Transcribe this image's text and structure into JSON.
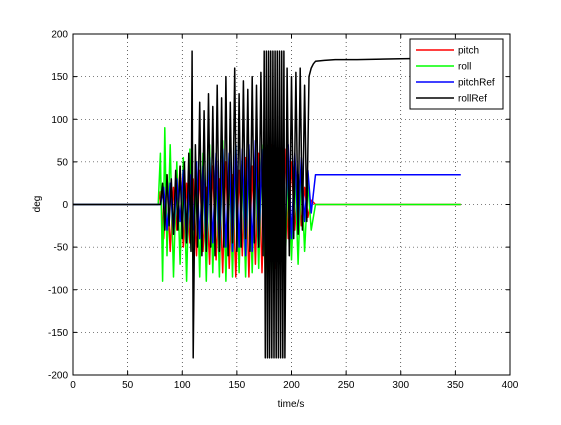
{
  "chart_data": {
    "type": "line",
    "title": "",
    "xlabel": "time/s",
    "ylabel": "deg",
    "xlim": [
      0,
      400
    ],
    "ylim": [
      -200,
      200
    ],
    "xticks": [
      0,
      50,
      100,
      150,
      200,
      250,
      300,
      350,
      400
    ],
    "yticks": [
      -200,
      -150,
      -100,
      -50,
      0,
      50,
      100,
      150,
      200
    ],
    "grid": true,
    "legend_position": "top-right",
    "series": [
      {
        "name": "pitch",
        "color": "#ff0000",
        "x": [
          0,
          78,
          80,
          83,
          86,
          89,
          92,
          95,
          98,
          101,
          104,
          107,
          110,
          113,
          116,
          119,
          122,
          125,
          128,
          131,
          134,
          137,
          140,
          143,
          146,
          149,
          152,
          155,
          158,
          161,
          164,
          167,
          170,
          173,
          176,
          179,
          182,
          185,
          188,
          191,
          194,
          197,
          200,
          203,
          206,
          209,
          212,
          215,
          218,
          222,
          355
        ],
        "y": [
          0,
          0,
          15,
          -40,
          35,
          -55,
          20,
          -30,
          45,
          -50,
          25,
          -45,
          30,
          -60,
          40,
          -55,
          20,
          -70,
          45,
          -65,
          30,
          -80,
          50,
          -75,
          35,
          -85,
          40,
          -60,
          55,
          -85,
          45,
          -70,
          60,
          -80,
          50,
          -65,
          70,
          -75,
          55,
          -60,
          65,
          -40,
          50,
          -30,
          35,
          -25,
          20,
          -15,
          5,
          0,
          0
        ]
      },
      {
        "name": "roll",
        "color": "#00ff00",
        "x": [
          0,
          78,
          80,
          82,
          84,
          86,
          89,
          92,
          95,
          98,
          101,
          104,
          107,
          110,
          113,
          116,
          119,
          122,
          125,
          128,
          131,
          134,
          137,
          140,
          143,
          146,
          149,
          152,
          155,
          158,
          161,
          164,
          167,
          170,
          173,
          176,
          179,
          182,
          185,
          188,
          191,
          194,
          197,
          200,
          203,
          206,
          209,
          212,
          215,
          218,
          222,
          355
        ],
        "y": [
          0,
          0,
          60,
          -90,
          90,
          -60,
          70,
          -85,
          50,
          -70,
          55,
          -90,
          65,
          -80,
          50,
          -85,
          60,
          -90,
          70,
          -80,
          55,
          -85,
          75,
          -90,
          60,
          -85,
          70,
          -80,
          50,
          -85,
          65,
          -80,
          55,
          -75,
          70,
          -85,
          60,
          -80,
          55,
          -75,
          65,
          -85,
          50,
          -65,
          45,
          -70,
          40,
          -55,
          25,
          -30,
          0,
          0
        ]
      },
      {
        "name": "pitchRef",
        "color": "#0000ff",
        "x": [
          0,
          80,
          83,
          86,
          89,
          92,
          95,
          98,
          101,
          104,
          107,
          110,
          113,
          116,
          119,
          122,
          125,
          128,
          131,
          134,
          137,
          140,
          143,
          146,
          149,
          152,
          155,
          158,
          161,
          164,
          167,
          170,
          173,
          176,
          179,
          182,
          185,
          188,
          191,
          194,
          197,
          200,
          203,
          206,
          209,
          212,
          215,
          218,
          222,
          355
        ],
        "y": [
          0,
          0,
          20,
          -30,
          25,
          -35,
          30,
          -20,
          40,
          -45,
          35,
          -30,
          50,
          -40,
          45,
          -50,
          55,
          -45,
          60,
          -55,
          65,
          -50,
          60,
          -55,
          70,
          -50,
          65,
          -60,
          70,
          -55,
          75,
          -50,
          65,
          -55,
          70,
          -45,
          75,
          -50,
          60,
          -45,
          70,
          -40,
          60,
          -30,
          55,
          -20,
          40,
          -10,
          35,
          35
        ]
      },
      {
        "name": "rollRef",
        "color": "#000000",
        "x": [
          0,
          80,
          82,
          84,
          86,
          88,
          90,
          92,
          94,
          96,
          98,
          100,
          102,
          104,
          106,
          108,
          109,
          110,
          112,
          114,
          116,
          118,
          120,
          122,
          124,
          126,
          128,
          130,
          132,
          134,
          136,
          138,
          140,
          142,
          144,
          146,
          148,
          150,
          152,
          154,
          156,
          158,
          160,
          162,
          164,
          166,
          168,
          170,
          172,
          174,
          175,
          176,
          177,
          178,
          179,
          180,
          181,
          182,
          183,
          184,
          185,
          186,
          187,
          188,
          189,
          190,
          191,
          192,
          193,
          194,
          196,
          198,
          200,
          202,
          204,
          206,
          208,
          210,
          212,
          214,
          216,
          218,
          220,
          222,
          230,
          240,
          260,
          300,
          355
        ],
        "y": [
          0,
          0,
          25,
          -30,
          35,
          -25,
          30,
          -35,
          40,
          -30,
          45,
          -40,
          50,
          -45,
          60,
          -55,
          180,
          -180,
          70,
          -50,
          120,
          -60,
          110,
          -55,
          130,
          -50,
          115,
          -60,
          140,
          -55,
          125,
          -50,
          150,
          -60,
          120,
          -45,
          160,
          -55,
          130,
          -50,
          145,
          -40,
          135,
          -55,
          150,
          -45,
          140,
          -50,
          155,
          -60,
          180,
          -180,
          180,
          -180,
          180,
          -180,
          180,
          -180,
          180,
          -180,
          180,
          -180,
          180,
          -180,
          180,
          -180,
          180,
          -180,
          180,
          -180,
          160,
          -60,
          150,
          -40,
          155,
          -35,
          160,
          -30,
          140,
          -20,
          150,
          160,
          165,
          168,
          169,
          170,
          170,
          171,
          172
        ]
      }
    ]
  }
}
